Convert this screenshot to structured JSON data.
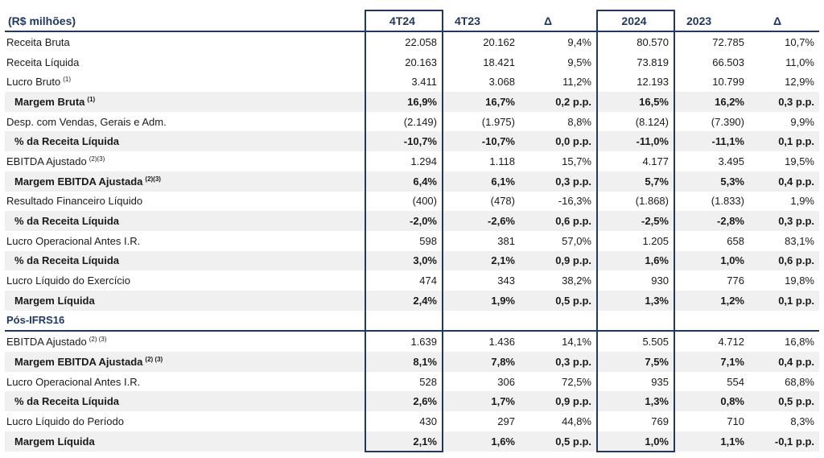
{
  "header": [
    "(R$ milhões)",
    "4T24",
    "4T23",
    "Δ",
    "2024",
    "2023",
    "Δ"
  ],
  "rows": [
    {
      "label": "Receita Bruta",
      "sup": "",
      "bold": false,
      "values": [
        "22.058",
        "20.162",
        "9,4%",
        "80.570",
        "72.785",
        "10,7%"
      ]
    },
    {
      "label": "Receita Líquida",
      "sup": "",
      "bold": false,
      "values": [
        "20.163",
        "18.421",
        "9,5%",
        "73.819",
        "66.503",
        "11,0%"
      ]
    },
    {
      "label": "Lucro Bruto",
      "sup": "(1)",
      "bold": false,
      "values": [
        "3.411",
        "3.068",
        "11,2%",
        "12.193",
        "10.799",
        "12,9%"
      ]
    },
    {
      "label": "Margem Bruta",
      "sup": "(1)",
      "bold": true,
      "values": [
        "16,9%",
        "16,7%",
        "0,2 p.p.",
        "16,5%",
        "16,2%",
        "0,3 p.p."
      ]
    },
    {
      "label": "Desp. com Vendas, Gerais e Adm.",
      "sup": "",
      "bold": false,
      "values": [
        "(2.149)",
        "(1.975)",
        "8,8%",
        "(8.124)",
        "(7.390)",
        "9,9%"
      ]
    },
    {
      "label": "% da Receita Líquida",
      "sup": "",
      "bold": true,
      "values": [
        "-10,7%",
        "-10,7%",
        "0,0 p.p.",
        "-11,0%",
        "-11,1%",
        "0,1 p.p."
      ]
    },
    {
      "label": "EBITDA Ajustado",
      "sup": "(2)(3)",
      "bold": false,
      "values": [
        "1.294",
        "1.118",
        "15,7%",
        "4.177",
        "3.495",
        "19,5%"
      ]
    },
    {
      "label": "Margem EBITDA Ajustada",
      "sup": "(2)(3)",
      "bold": true,
      "values": [
        "6,4%",
        "6,1%",
        "0,3 p.p.",
        "5,7%",
        "5,3%",
        "0,4 p.p."
      ]
    },
    {
      "label": "Resultado Financeiro Líquido",
      "sup": "",
      "bold": false,
      "values": [
        "(400)",
        "(478)",
        "-16,3%",
        "(1.868)",
        "(1.833)",
        "1,9%"
      ]
    },
    {
      "label": "% da Receita Líquida",
      "sup": "",
      "bold": true,
      "values": [
        "-2,0%",
        "-2,6%",
        "0,6 p.p.",
        "-2,5%",
        "-2,8%",
        "0,3 p.p."
      ]
    },
    {
      "label": "Lucro Operacional Antes I.R.",
      "sup": "",
      "bold": false,
      "values": [
        "598",
        "381",
        "57,0%",
        "1.205",
        "658",
        "83,1%"
      ]
    },
    {
      "label": "% da Receita Líquida",
      "sup": "",
      "bold": true,
      "values": [
        "3,0%",
        "2,1%",
        "0,9 p.p.",
        "1,6%",
        "1,0%",
        "0,6 p.p."
      ]
    },
    {
      "label": "Lucro Líquido do Exercício",
      "sup": "",
      "bold": false,
      "values": [
        "474",
        "343",
        "38,2%",
        "930",
        "776",
        "19,8%"
      ]
    },
    {
      "label": "Margem Líquida",
      "sup": "",
      "bold": true,
      "values": [
        "2,4%",
        "1,9%",
        "0,5 p.p.",
        "1,3%",
        "1,2%",
        "0,1 p.p."
      ]
    },
    {
      "label": "Pós-IFRS16",
      "sup": "",
      "bold": false,
      "section": true,
      "values": [
        "",
        "",
        "",
        "",
        "",
        ""
      ]
    },
    {
      "label": "EBITDA Ajustado",
      "sup": "(2) (3)",
      "bold": false,
      "values": [
        "1.639",
        "1.436",
        "14,1%",
        "5.505",
        "4.712",
        "16,8%"
      ]
    },
    {
      "label": "Margem EBITDA Ajustada",
      "sup": "(2) (3)",
      "bold": true,
      "values": [
        "8,1%",
        "7,8%",
        "0,3 p.p.",
        "7,5%",
        "7,1%",
        "0,4 p.p."
      ]
    },
    {
      "label": "Lucro Operacional Antes I.R.",
      "sup": "",
      "bold": false,
      "values": [
        "528",
        "306",
        "72,5%",
        "935",
        "554",
        "68,8%"
      ]
    },
    {
      "label": "% da Receita Líquida",
      "sup": "",
      "bold": true,
      "values": [
        "2,6%",
        "1,7%",
        "0,9 p.p.",
        "1,3%",
        "0,8%",
        "0,5 p.p."
      ]
    },
    {
      "label": "Lucro Líquido do Período",
      "sup": "",
      "bold": false,
      "values": [
        "430",
        "297",
        "44,8%",
        "769",
        "710",
        "8,3%"
      ]
    },
    {
      "label": "Margem Líquida",
      "sup": "",
      "bold": true,
      "values": [
        "2,1%",
        "1,6%",
        "0,5 p.p.",
        "1,0%",
        "1,1%",
        "-0,1 p.p."
      ]
    }
  ]
}
